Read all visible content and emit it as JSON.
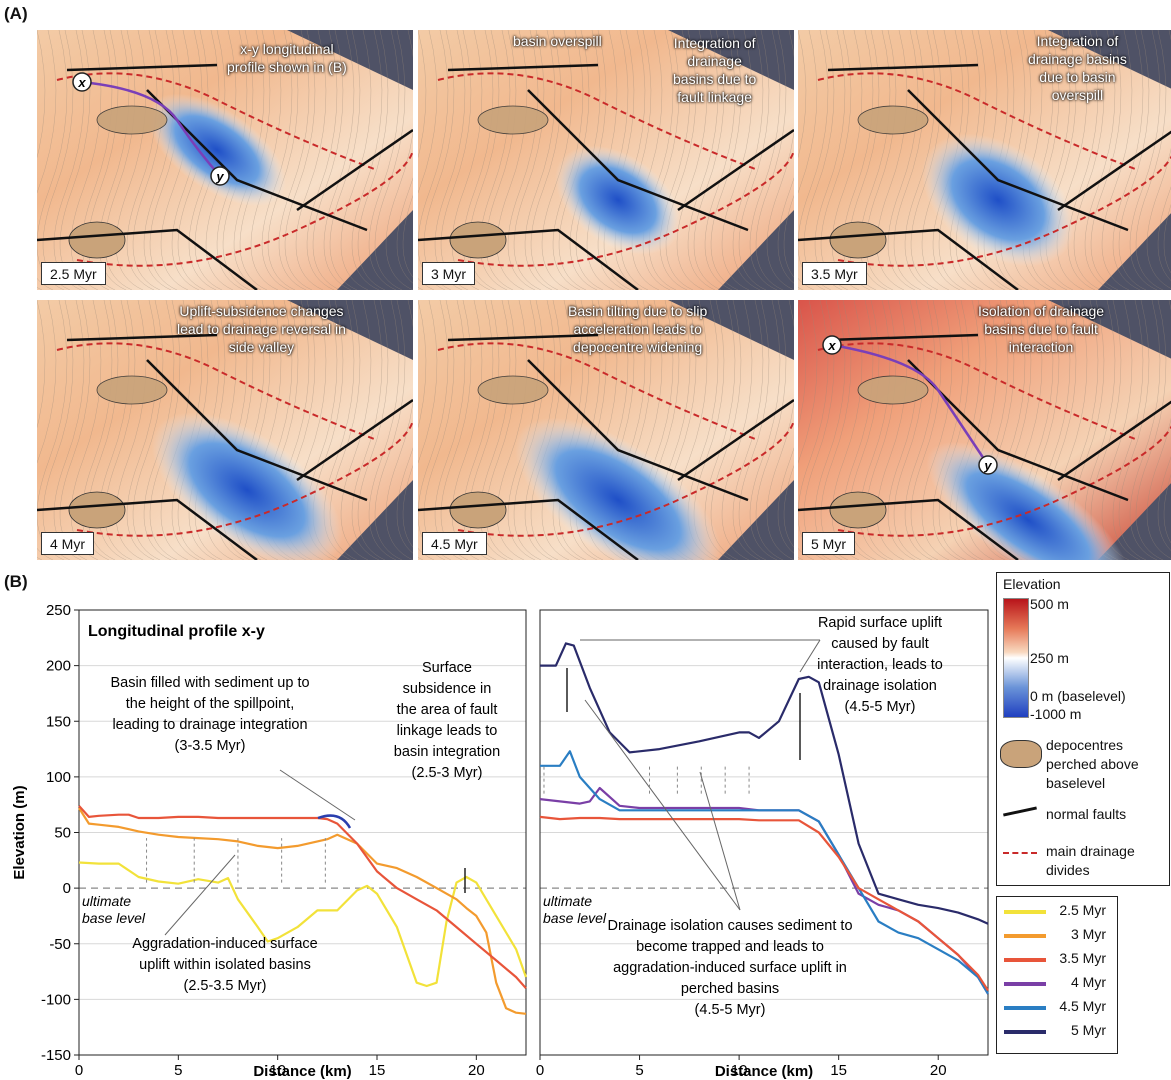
{
  "panel_a": {
    "label": "(A)",
    "maps": [
      {
        "time": "2.5 Myr",
        "annotation": "x-y longitudinal\nprofile shown in (B)",
        "markers": [
          "x",
          "y"
        ]
      },
      {
        "time": "3 Myr",
        "annotation": "basin overspill",
        "annotation2": "Integration of\ndrainage\nbasins due to\nfault linkage"
      },
      {
        "time": "3.5 Myr",
        "annotation": "Integration of\ndrainage basins\ndue to basin\noverspill"
      },
      {
        "time": "4 Myr",
        "annotation": "Uplift-subsidence changes\nlead to drainage reversal in\nside valley"
      },
      {
        "time": "4.5 Myr",
        "annotation": "Basin tilting due to slip\nacceleration leads to\ndepocentre widening"
      },
      {
        "time": "5 Myr",
        "annotation": "Isolation of drainage\nbasins due to fault\ninteraction",
        "markers": [
          "x",
          "y"
        ]
      }
    ]
  },
  "panel_b": {
    "label": "(B)",
    "left_title": "Longitudinal profile x-y",
    "annotations_left": [
      "Basin filled with sediment up to\nthe height of the spillpoint,\nleading to drainage integration\n(3-3.5 Myr)",
      "Surface\nsubsidence in\nthe area of fault\nlinkage leads to\nbasin integration\n(2.5-3 Myr)",
      "Aggradation-induced surface\nuplift within isolated basins\n(2.5-3.5 Myr)",
      "ultimate\nbase level"
    ],
    "annotations_right": [
      "Rapid surface uplift\ncaused by fault\ninteraction, leads to\ndrainage isolation\n(4.5-5 Myr)",
      "Drainage isolation causes sediment to\nbecome trapped and leads to\naggradation-induced surface uplift in\nperched basins\n(4.5-5 Myr)",
      "ultimate\nbase level"
    ]
  },
  "legend": {
    "elevation_title": "Elevation",
    "colorbar_labels": [
      "500 m",
      "250 m",
      "0 m (baselevel)",
      "-1000 m"
    ],
    "items": [
      "depocentres\nperched above\nbaselevel",
      "normal faults",
      "main drainage\ndivides"
    ],
    "series_names": [
      "2.5 Myr",
      "3 Myr",
      "3.5 Myr",
      "4 Myr",
      "4.5 Myr",
      "5 Myr"
    ]
  },
  "colors": {
    "s25": "#f2e23a",
    "s3": "#f39b2e",
    "s35": "#e8553a",
    "s4": "#7a3fa6",
    "s45": "#2a7ec3",
    "s5": "#2a2b6a",
    "fault": "#111111",
    "divide": "#c92a2a",
    "depocentre": "#c9a37a"
  },
  "chart_data": [
    {
      "type": "line",
      "title": "Longitudinal profile x-y",
      "xlabel": "Distance (km)",
      "ylabel": "Elevation (m)",
      "xlim": [
        0,
        22.5
      ],
      "ylim": [
        -150,
        250
      ],
      "xticks": [
        0,
        5,
        10,
        15,
        20
      ],
      "yticks": [
        250,
        200,
        150,
        100,
        50,
        0,
        -50,
        -100,
        -150
      ],
      "series": [
        {
          "name": "2.5 Myr",
          "color_key": "s25",
          "x": [
            0,
            1,
            2,
            3,
            4,
            5,
            6,
            7,
            7.5,
            8,
            9,
            9.5,
            10,
            11,
            12,
            13,
            14,
            14.5,
            15,
            16,
            17,
            17.5,
            18,
            18.5,
            19,
            19.5,
            20,
            21,
            22,
            22.5
          ],
          "y": [
            23,
            22,
            22,
            10,
            6,
            4,
            8,
            5,
            9,
            -10,
            -35,
            -48,
            -45,
            -35,
            -20,
            -20,
            -2,
            2,
            -5,
            -35,
            -85,
            -88,
            -85,
            -30,
            5,
            10,
            5,
            -25,
            -55,
            -80
          ]
        },
        {
          "name": "3 Myr",
          "color_key": "s3",
          "x": [
            0,
            0.5,
            1,
            2,
            3,
            4,
            5,
            6,
            7,
            8,
            9,
            10,
            11,
            12,
            12.5,
            13,
            14,
            15,
            16,
            17,
            18,
            19,
            19.5,
            20,
            20.5,
            21,
            21.5,
            22,
            22.5
          ],
          "y": [
            72,
            58,
            57,
            55,
            51,
            48,
            46,
            45,
            44,
            42,
            38,
            36,
            38,
            42,
            44,
            48,
            40,
            22,
            18,
            10,
            0,
            -10,
            -18,
            -25,
            -40,
            -85,
            -108,
            -112,
            -113
          ]
        },
        {
          "name": "3.5 Myr",
          "color_key": "s35",
          "x": [
            0,
            0.5,
            1,
            2,
            2.5,
            3,
            4,
            5,
            6,
            7,
            8,
            9,
            10,
            11,
            12,
            12.5,
            13,
            14,
            15,
            16,
            17,
            18,
            19,
            20,
            21,
            22,
            22.5
          ],
          "y": [
            74,
            64,
            65,
            66,
            66,
            63,
            63,
            64,
            64,
            63,
            63,
            63,
            63,
            63,
            63,
            62,
            58,
            40,
            15,
            0,
            -10,
            -20,
            -35,
            -50,
            -65,
            -80,
            -90
          ]
        }
      ]
    },
    {
      "type": "line",
      "xlabel": "Distance (km)",
      "xlim": [
        0,
        22.5
      ],
      "ylim": [
        -150,
        250
      ],
      "xticks": [
        0,
        5,
        10,
        15,
        20
      ],
      "series": [
        {
          "name": "4 Myr",
          "color_key": "s4",
          "x": [
            0,
            1,
            2,
            2.5,
            3,
            4,
            5,
            6,
            7,
            8,
            9,
            10,
            11,
            12,
            13,
            14,
            15,
            16,
            17,
            18,
            19,
            20,
            21,
            22,
            22.5
          ],
          "y": [
            80,
            78,
            76,
            78,
            90,
            74,
            72,
            72,
            72,
            72,
            72,
            72,
            70,
            70,
            70,
            60,
            30,
            -5,
            -15,
            -20,
            -30,
            -45,
            -60,
            -80,
            -95
          ]
        },
        {
          "name": "4.5 Myr",
          "color_key": "s45",
          "x": [
            0,
            1,
            1.5,
            2,
            3,
            4,
            5,
            6,
            7,
            8,
            9,
            10,
            11,
            12,
            13,
            14,
            15,
            16,
            17,
            18,
            19,
            20,
            21,
            22,
            22.5
          ],
          "y": [
            110,
            110,
            123,
            100,
            80,
            70,
            70,
            70,
            70,
            70,
            70,
            70,
            70,
            70,
            70,
            60,
            30,
            0,
            -30,
            -40,
            -45,
            -55,
            -65,
            -80,
            -95
          ]
        },
        {
          "name": "3.5 Myr",
          "color_key": "s35",
          "x": [
            0,
            1,
            2,
            3,
            4,
            5,
            6,
            7,
            8,
            9,
            10,
            11,
            12,
            13,
            14,
            15,
            16,
            17,
            18,
            19,
            20,
            21,
            22,
            22.5
          ],
          "y": [
            64,
            62,
            63,
            63,
            62,
            62,
            62,
            62,
            62,
            62,
            62,
            61,
            61,
            61,
            50,
            28,
            0,
            -10,
            -20,
            -30,
            -45,
            -60,
            -78,
            -92
          ]
        },
        {
          "name": "5 Myr",
          "color_key": "s5",
          "x": [
            0,
            0.8,
            1.3,
            1.7,
            2.5,
            3.5,
            4.5,
            6,
            8,
            10,
            10.5,
            11,
            12,
            13,
            13.5,
            14,
            15,
            16,
            17,
            18,
            19,
            20,
            21,
            22,
            22.5
          ],
          "y": [
            200,
            200,
            220,
            218,
            180,
            140,
            122,
            125,
            132,
            140,
            140,
            135,
            150,
            188,
            190,
            185,
            120,
            40,
            -5,
            -10,
            -15,
            -18,
            -22,
            -28,
            -32
          ]
        }
      ]
    }
  ]
}
